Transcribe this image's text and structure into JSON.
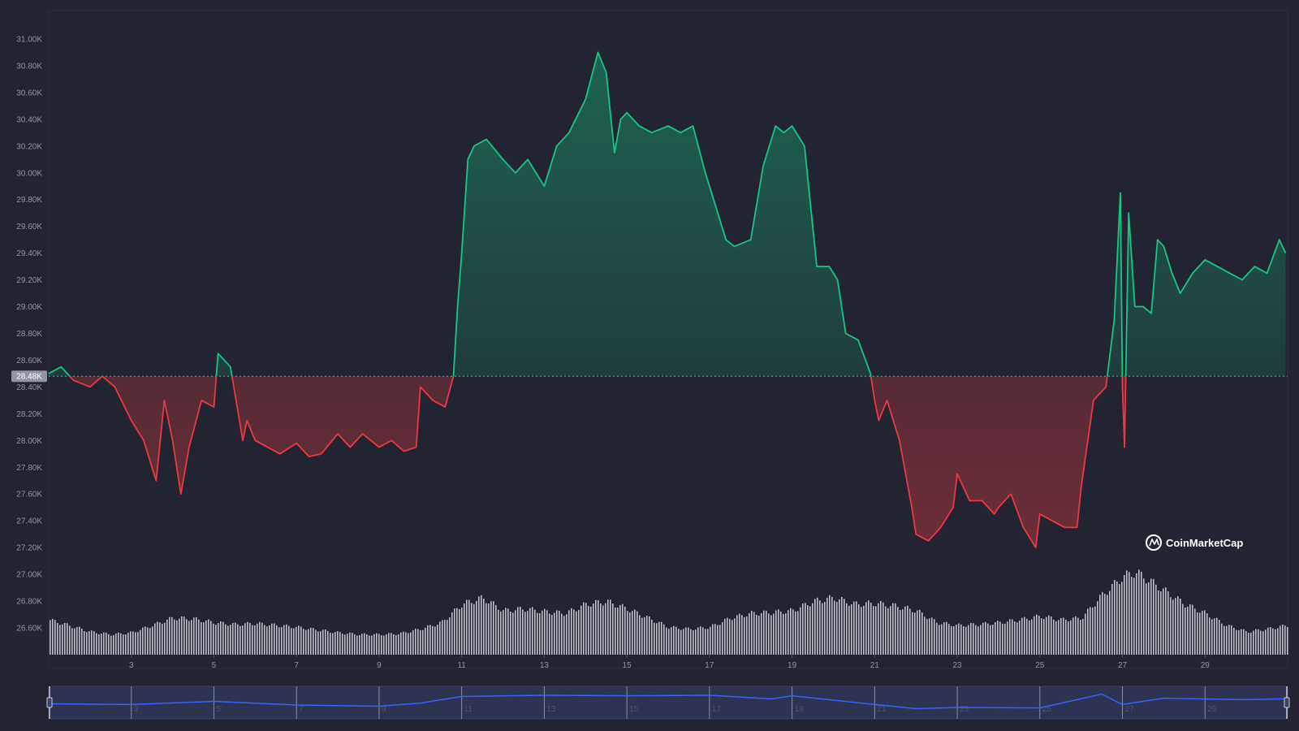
{
  "chart_data": {
    "type": "area",
    "title": "",
    "xlabel": "",
    "ylabel": "",
    "reference_value": 28.48,
    "reference_label": "28.48K",
    "y_unit": "K",
    "ylim": [
      26.4,
      31.2
    ],
    "y_ticks": [
      "31.00K",
      "30.80K",
      "30.60K",
      "30.40K",
      "30.20K",
      "30.00K",
      "29.80K",
      "29.60K",
      "29.40K",
      "29.20K",
      "29.00K",
      "28.80K",
      "28.60K",
      "28.40K",
      "28.20K",
      "28.00K",
      "27.80K",
      "27.60K",
      "27.40K",
      "27.20K",
      "27.00K",
      "26.80K",
      "26.60K"
    ],
    "x_range": [
      1,
      31
    ],
    "x_ticks": [
      "3",
      "5",
      "7",
      "9",
      "11",
      "13",
      "15",
      "17",
      "19",
      "21",
      "23",
      "25",
      "27",
      "29"
    ],
    "x_tick_days": [
      3,
      5,
      7,
      9,
      11,
      13,
      15,
      17,
      19,
      21,
      23,
      25,
      27,
      29
    ],
    "up_color": "#16c784",
    "down_color": "#ea3943",
    "price_series": {
      "name": "",
      "x": [
        1.0,
        1.3,
        1.6,
        2.0,
        2.3,
        2.6,
        3.0,
        3.3,
        3.6,
        3.8,
        4.0,
        4.2,
        4.4,
        4.7,
        5.0,
        5.1,
        5.4,
        5.7,
        5.8,
        6.0,
        6.3,
        6.6,
        7.0,
        7.3,
        7.6,
        8.0,
        8.3,
        8.6,
        9.0,
        9.3,
        9.6,
        9.9,
        10.0,
        10.3,
        10.6,
        10.8,
        10.9,
        11.0,
        11.15,
        11.3,
        11.6,
        12.0,
        12.3,
        12.6,
        13.0,
        13.3,
        13.6,
        14.0,
        14.3,
        14.5,
        14.7,
        14.85,
        15.0,
        15.3,
        15.6,
        16.0,
        16.3,
        16.6,
        16.9,
        17.1,
        17.4,
        17.6,
        18.0,
        18.3,
        18.6,
        18.8,
        19.0,
        19.3,
        19.6,
        19.9,
        20.1,
        20.3,
        20.6,
        20.9,
        21.0,
        21.1,
        21.3,
        21.6,
        21.9,
        22.0,
        22.3,
        22.6,
        22.9,
        23.0,
        23.3,
        23.6,
        23.9,
        24.0,
        24.3,
        24.6,
        24.9,
        25.0,
        25.3,
        25.6,
        25.9,
        26.0,
        26.3,
        26.6,
        26.8,
        26.95,
        27.0,
        27.05,
        27.15,
        27.3,
        27.5,
        27.7,
        27.85,
        28.0,
        28.2,
        28.4,
        28.7,
        29.0,
        29.3,
        29.6,
        29.9,
        30.2,
        30.5,
        30.8,
        30.95
      ],
      "y": [
        28.5,
        28.55,
        28.45,
        28.4,
        28.48,
        28.4,
        28.15,
        28.0,
        27.7,
        28.3,
        28.0,
        27.6,
        27.95,
        28.3,
        28.25,
        28.65,
        28.55,
        28.0,
        28.15,
        28.0,
        27.95,
        27.9,
        27.98,
        27.88,
        27.9,
        28.05,
        27.95,
        28.05,
        27.95,
        28.0,
        27.92,
        27.95,
        28.4,
        28.3,
        28.25,
        28.48,
        29.0,
        29.4,
        30.1,
        30.2,
        30.25,
        30.1,
        30.0,
        30.1,
        29.9,
        30.2,
        30.3,
        30.55,
        30.9,
        30.75,
        30.15,
        30.4,
        30.45,
        30.35,
        30.3,
        30.35,
        30.3,
        30.35,
        30.0,
        29.8,
        29.5,
        29.45,
        29.5,
        30.05,
        30.35,
        30.3,
        30.35,
        30.2,
        29.3,
        29.3,
        29.2,
        28.8,
        28.75,
        28.5,
        28.3,
        28.15,
        28.3,
        28.0,
        27.5,
        27.3,
        27.25,
        27.35,
        27.5,
        27.75,
        27.55,
        27.55,
        27.45,
        27.5,
        27.6,
        27.35,
        27.2,
        27.45,
        27.4,
        27.35,
        27.35,
        27.65,
        28.3,
        28.4,
        28.9,
        29.85,
        28.4,
        27.95,
        29.7,
        29.0,
        29.0,
        28.95,
        29.5,
        29.45,
        29.25,
        29.1,
        29.25,
        29.35,
        29.3,
        29.25,
        29.2,
        29.3,
        29.25,
        29.5,
        29.4
      ],
      "min": 27.1,
      "max": 30.95
    },
    "volume_series": {
      "name": "",
      "x": [
        1,
        2,
        2.5,
        3,
        3.5,
        4,
        4.5,
        5,
        5.5,
        6,
        6.5,
        7,
        7.5,
        8,
        8.5,
        9,
        9.5,
        10,
        10.5,
        11,
        11.5,
        12,
        12.5,
        13,
        13.5,
        14,
        14.5,
        15,
        15.5,
        16,
        16.5,
        17,
        17.5,
        18,
        18.5,
        19,
        19.5,
        20,
        20.5,
        21,
        21.5,
        22,
        22.5,
        23,
        23.5,
        24,
        24.5,
        25,
        25.5,
        26,
        26.5,
        27,
        27.3,
        27.6,
        28,
        28.5,
        29,
        29.5,
        30,
        30.5,
        31
      ],
      "values": [
        0.38,
        0.25,
        0.22,
        0.24,
        0.32,
        0.4,
        0.39,
        0.35,
        0.33,
        0.34,
        0.32,
        0.3,
        0.27,
        0.24,
        0.22,
        0.22,
        0.23,
        0.28,
        0.35,
        0.55,
        0.62,
        0.48,
        0.5,
        0.47,
        0.45,
        0.55,
        0.58,
        0.5,
        0.4,
        0.3,
        0.28,
        0.3,
        0.4,
        0.45,
        0.46,
        0.48,
        0.58,
        0.62,
        0.55,
        0.56,
        0.53,
        0.48,
        0.35,
        0.32,
        0.33,
        0.35,
        0.38,
        0.42,
        0.38,
        0.4,
        0.65,
        0.85,
        0.9,
        0.82,
        0.7,
        0.55,
        0.45,
        0.32,
        0.25,
        0.28,
        0.32
      ]
    },
    "navigator_series": {
      "x": [
        1,
        3,
        5,
        7,
        9,
        10,
        11,
        13,
        15,
        17,
        18.5,
        19,
        21,
        22,
        23,
        25,
        26.5,
        27,
        28,
        30,
        31
      ],
      "values": [
        0.45,
        0.42,
        0.55,
        0.4,
        0.35,
        0.48,
        0.75,
        0.8,
        0.78,
        0.8,
        0.65,
        0.78,
        0.42,
        0.25,
        0.3,
        0.28,
        0.85,
        0.42,
        0.68,
        0.62,
        0.66
      ]
    },
    "watermark": "CoinMarketCap",
    "grid": false,
    "legend": "none"
  }
}
